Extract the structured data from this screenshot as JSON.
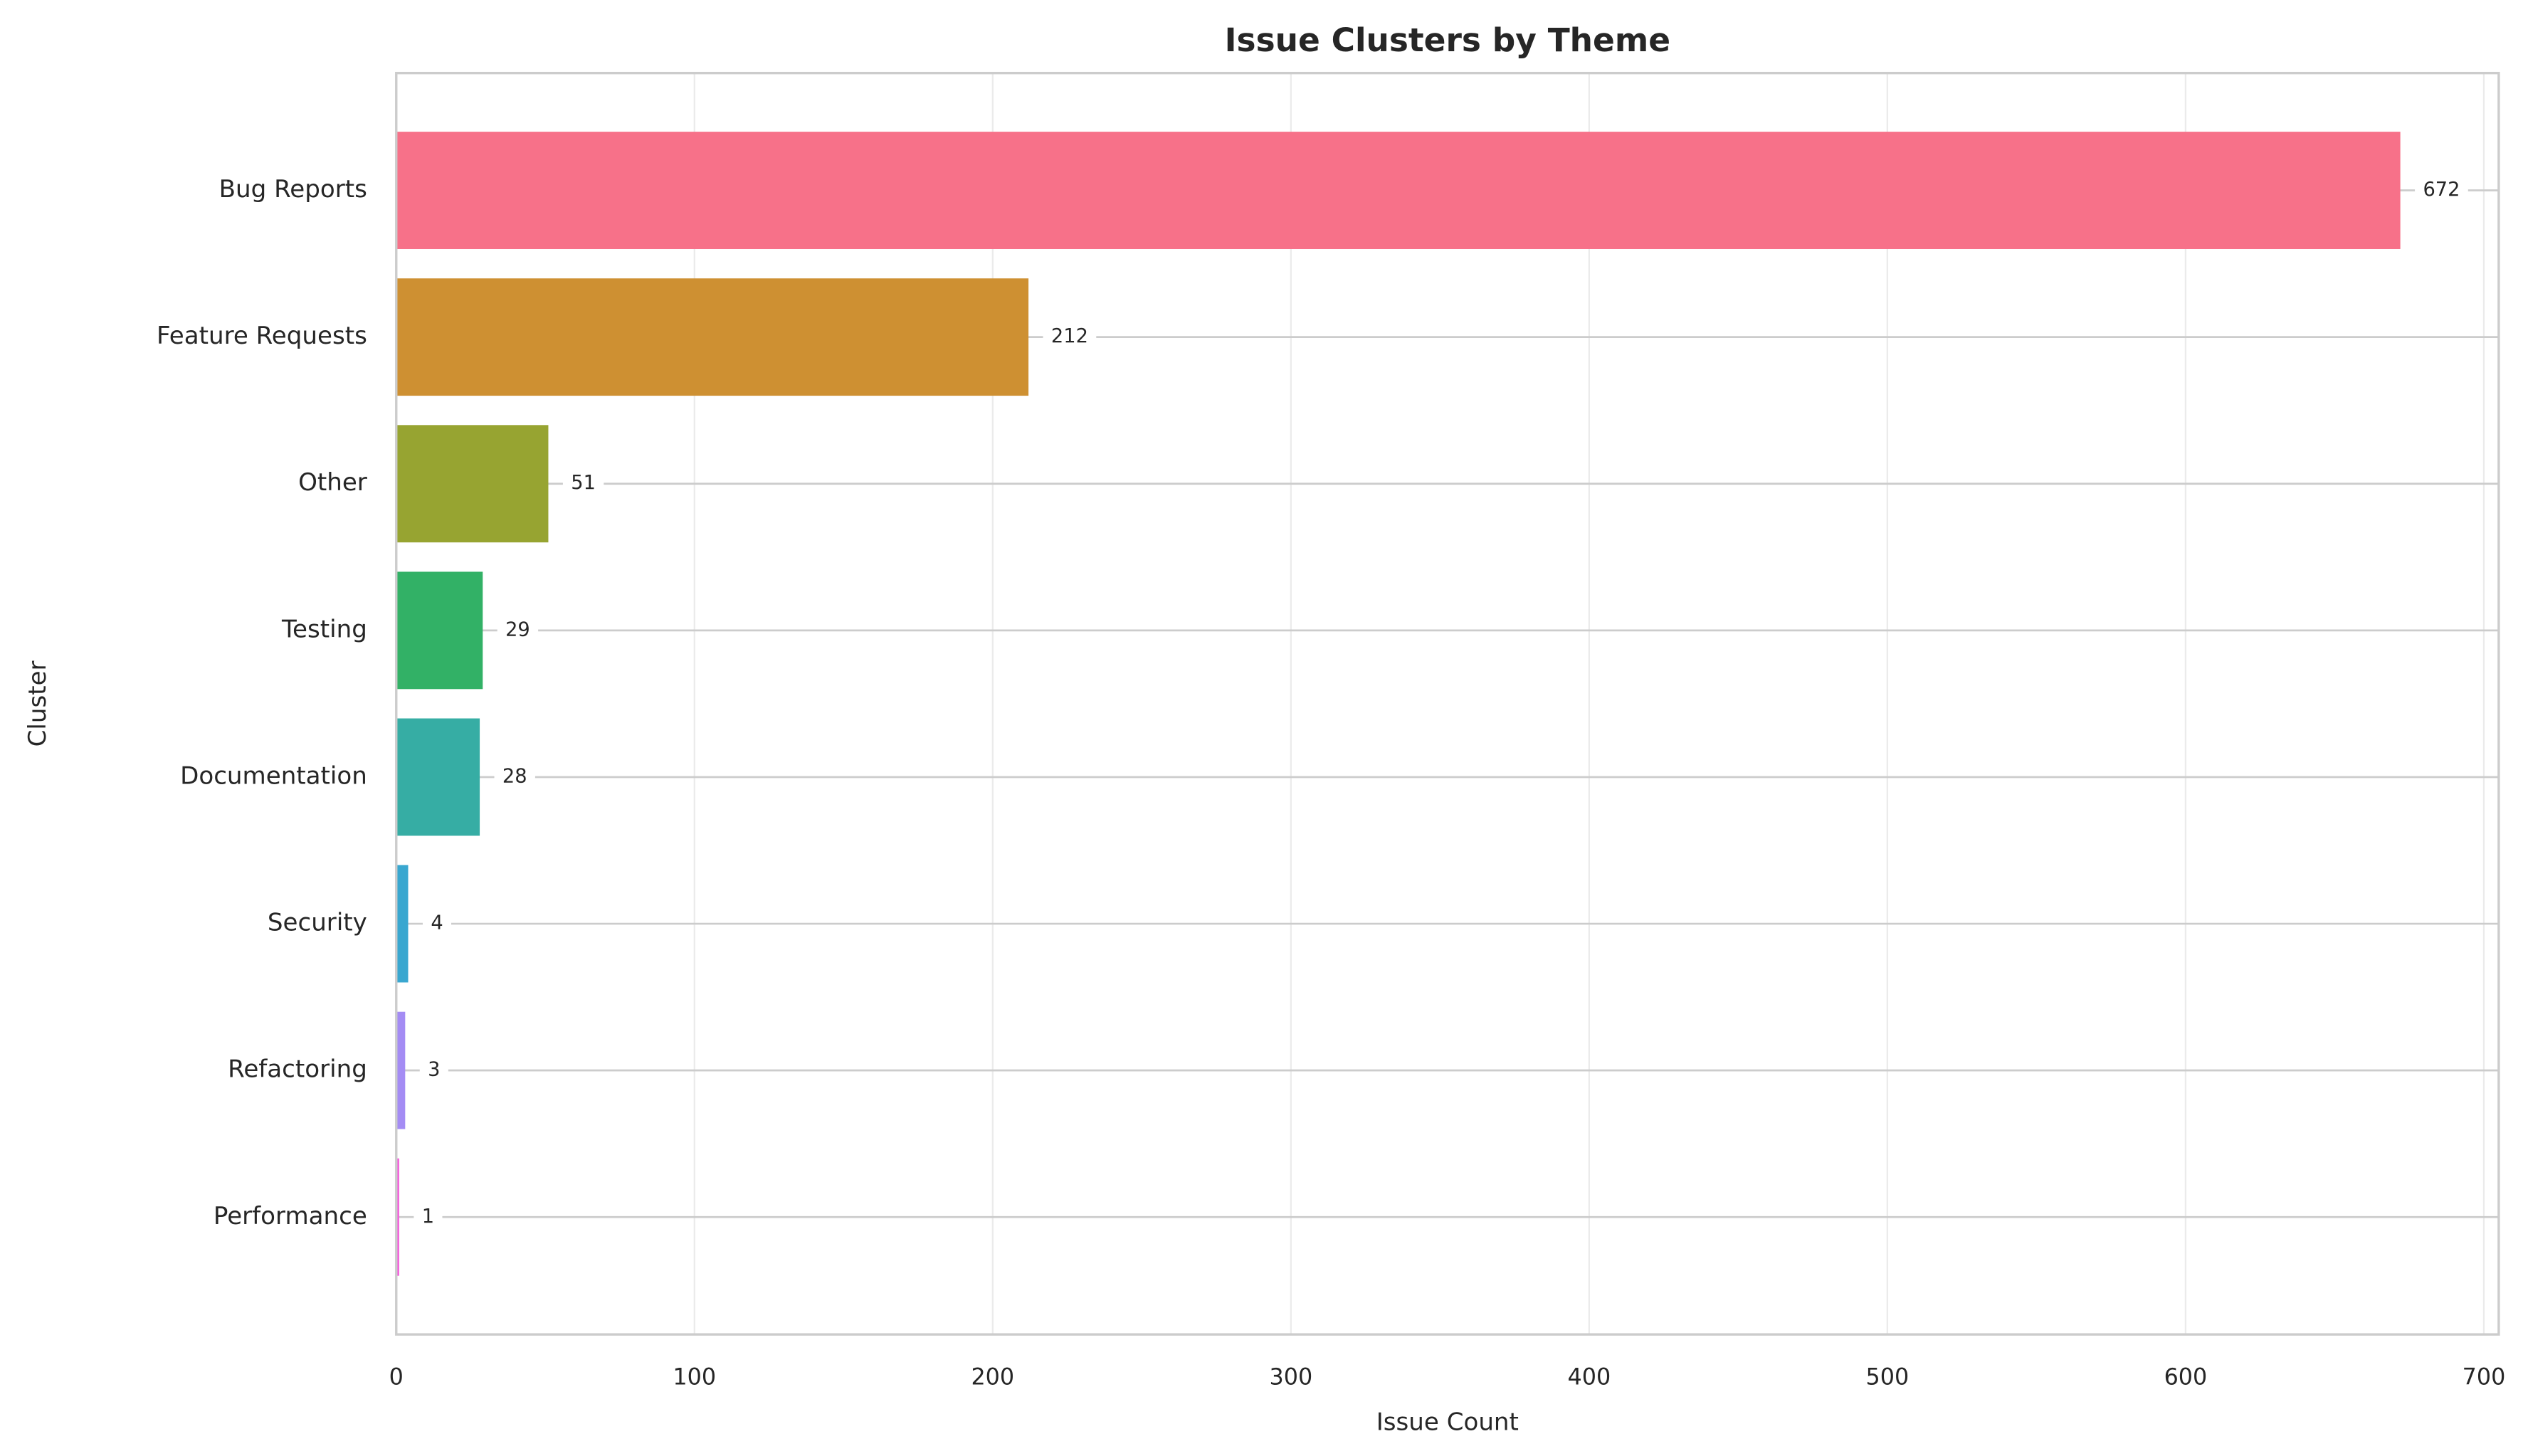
{
  "chart_data": {
    "type": "barh",
    "title": "Issue Clusters by Theme",
    "xlabel": "Issue Count",
    "ylabel": "Cluster",
    "categories": [
      "Bug Reports",
      "Feature Requests",
      "Other",
      "Testing",
      "Documentation",
      "Security",
      "Refactoring",
      "Performance"
    ],
    "values": [
      672,
      212,
      51,
      29,
      28,
      4,
      3,
      1
    ],
    "colors": [
      "#f77189",
      "#ce9032",
      "#97a431",
      "#32b166",
      "#36ada4",
      "#39a7d0",
      "#a48cf4",
      "#f561dd"
    ],
    "xlim": [
      0,
      705
    ],
    "xticks": [
      0,
      100,
      200,
      300,
      400,
      500,
      600,
      700
    ],
    "grid": true
  }
}
